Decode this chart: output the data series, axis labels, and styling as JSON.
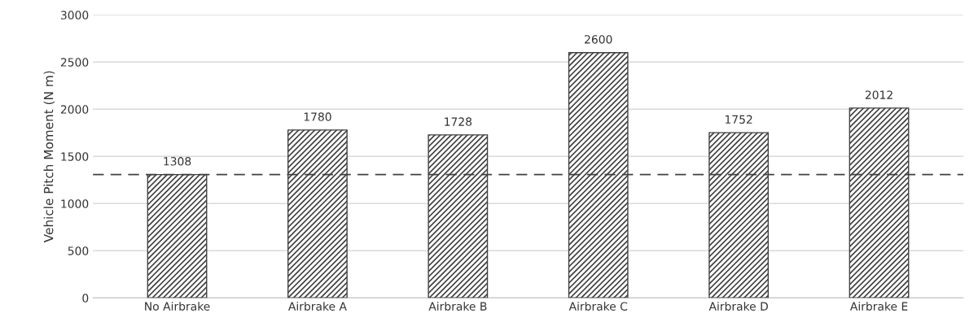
{
  "chart_data": {
    "type": "bar",
    "ylabel": "Vehicle Pitch Moment (N m)",
    "categories": [
      "No Airbrake",
      "Airbrake A",
      "Airbrake B",
      "Airbrake C",
      "Airbrake D",
      "Airbrake E"
    ],
    "values": [
      1308,
      1780,
      1728,
      2600,
      1752,
      2012
    ],
    "color": "#404040",
    "ylim": [
      0,
      3000
    ],
    "yticks": [
      0,
      500,
      1000,
      1500,
      2000,
      2500,
      3000
    ],
    "grid": "y",
    "data_labels": true,
    "ref_lines": [
      {
        "axis": "y",
        "value": 1308,
        "color": "#404040",
        "line_style": "dashed"
      }
    ]
  }
}
